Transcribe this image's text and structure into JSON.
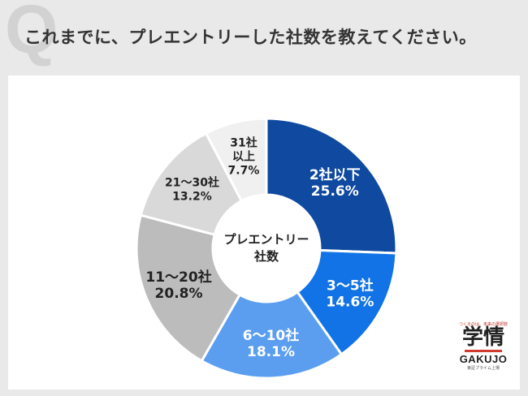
{
  "header": {
    "mark": "Q",
    "question": "これまでに、プレエントリーした社数を教えてください。"
  },
  "chart_data": {
    "type": "pie",
    "center_label": [
      "プレエントリー",
      "社数"
    ],
    "slices": [
      {
        "label": [
          "2社以下"
        ],
        "value": 25.6,
        "value_text": "25.6%",
        "color": "#0f4aa0",
        "text_color": "#ffffff"
      },
      {
        "label": [
          "3～5社"
        ],
        "value": 14.6,
        "value_text": "14.6%",
        "color": "#1173e6",
        "text_color": "#ffffff"
      },
      {
        "label": [
          "6～10社"
        ],
        "value": 18.1,
        "value_text": "18.1%",
        "color": "#5b9ef0",
        "text_color": "#ffffff"
      },
      {
        "label": [
          "11～20社"
        ],
        "value": 20.8,
        "value_text": "20.8%",
        "color": "#bcbcbc",
        "text_color": "#222222"
      },
      {
        "label": [
          "21～30社"
        ],
        "value": 13.2,
        "value_text": "13.2%",
        "color": "#d9d9d9",
        "text_color": "#222222"
      },
      {
        "label": [
          "31社",
          "以上"
        ],
        "value": 7.7,
        "value_text": "7.7%",
        "color": "#f0f0f0",
        "text_color": "#222222"
      }
    ]
  },
  "logo": {
    "tagline": "つくるのは、未来の選択肢",
    "kanji": "学情",
    "roman": "GAKUJO",
    "sub": "東証プライム上場"
  }
}
